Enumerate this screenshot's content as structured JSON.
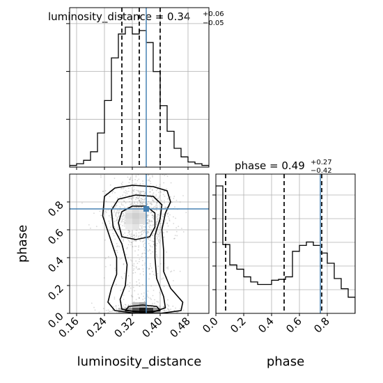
{
  "chart_data": [
    {
      "type": "histogram",
      "panel": "luminosity_distance-marginal",
      "title": {
        "prefix": "luminosity_distance = 0.34",
        "plus": "+0.06",
        "minus": "−0.05"
      },
      "xlim": [
        0.14,
        0.54
      ],
      "bin_edges": [
        0.14,
        0.16,
        0.18,
        0.2,
        0.22,
        0.24,
        0.26,
        0.28,
        0.3,
        0.32,
        0.34,
        0.36,
        0.38,
        0.4,
        0.42,
        0.44,
        0.46,
        0.48,
        0.5,
        0.52,
        0.54
      ],
      "counts": [
        1,
        2,
        4,
        9,
        20,
        39,
        64,
        78,
        82,
        78,
        80,
        73,
        56,
        36,
        21,
        11,
        6,
        3,
        2,
        1
      ],
      "quantiles": [
        0.29,
        0.34,
        0.4
      ],
      "truth": 0.36,
      "grid": true,
      "colors": {
        "hist": "#000000",
        "truth": "#4682b4",
        "quantile": "#000000"
      }
    },
    {
      "type": "histogram",
      "panel": "phase-marginal",
      "title": {
        "prefix": "phase = 0.49",
        "plus": "+0.27",
        "minus": "−0.42"
      },
      "xlim": [
        0.0,
        1.0
      ],
      "bin_edges": [
        0.0,
        0.05,
        0.1,
        0.15,
        0.2,
        0.25,
        0.3,
        0.35,
        0.4,
        0.45,
        0.5,
        0.55,
        0.6,
        0.65,
        0.7,
        0.75,
        0.8,
        0.85,
        0.9,
        0.95,
        1.0
      ],
      "counts": [
        150,
        81,
        57,
        52,
        43,
        37,
        34,
        34,
        39,
        40,
        43,
        73,
        80,
        84,
        80,
        71,
        59,
        41,
        29,
        19
      ],
      "quantiles": [
        0.07,
        0.49,
        0.76
      ],
      "truth": 0.75,
      "grid": true,
      "colors": {
        "hist": "#000000",
        "truth": "#4682b4",
        "quantile": "#000000"
      }
    },
    {
      "type": "heatmap",
      "panel": "joint-2d",
      "xlim": [
        0.14,
        0.54
      ],
      "ylim": [
        0.0,
        1.0
      ],
      "xlabel": "luminosity_distance",
      "ylabel": "phase",
      "truth_point": [
        0.36,
        0.75
      ],
      "contour_levels": [
        "0.39",
        "0.86",
        "0.99"
      ],
      "grid": true,
      "colors": {
        "contour": "#000000",
        "truth": "#4682b4",
        "scatter": "#9e9e9e"
      }
    }
  ],
  "axes": {
    "x_lum": {
      "ticks": [
        0.16,
        0.24,
        0.32,
        0.4,
        0.48
      ],
      "labels": [
        "0.16",
        "0.24",
        "0.32",
        "0.40",
        "0.48"
      ],
      "title": "luminosity_distance"
    },
    "y_phase": {
      "ticks": [
        0.0,
        0.2,
        0.4,
        0.6,
        0.8
      ],
      "labels": [
        "0.0",
        "0.2",
        "0.4",
        "0.6",
        "0.8"
      ],
      "title": "phase"
    },
    "x_phase": {
      "ticks": [
        0.0,
        0.2,
        0.4,
        0.6,
        0.8
      ],
      "labels": [
        "0.0",
        "0.2",
        "0.4",
        "0.6",
        "0.8"
      ],
      "title": "phase"
    }
  }
}
